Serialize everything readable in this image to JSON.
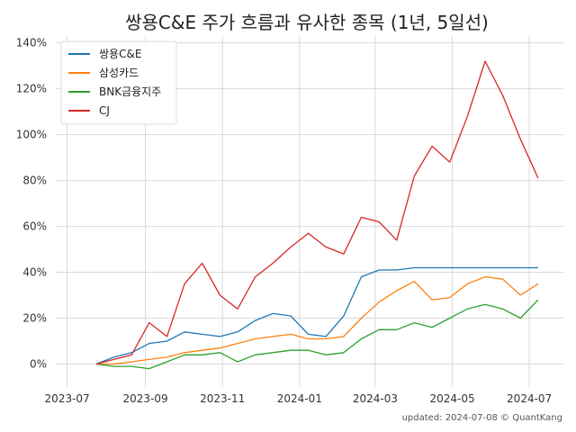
{
  "chart_data": {
    "type": "line",
    "title": "쌍용C&E 주가 흐름과 유사한 종목 (1년, 5일선)",
    "xlabel": "",
    "ylabel": "",
    "x_tick_labels": [
      "2023-07",
      "2023-09",
      "2023-11",
      "2024-01",
      "2024-03",
      "2024-05",
      "2024-07"
    ],
    "y_tick_labels": [
      "0%",
      "20%",
      "40%",
      "60%",
      "80%",
      "100%",
      "120%",
      "140%"
    ],
    "y_ticks": [
      0,
      20,
      40,
      60,
      80,
      100,
      120,
      140
    ],
    "xlim": [
      "2023-06-22",
      "2024-07-28"
    ],
    "ylim": [
      -10,
      143
    ],
    "grid": true,
    "legend_position": "top-left",
    "x": [
      "2023-07-24",
      "2023-08-07",
      "2023-08-21",
      "2023-09-04",
      "2023-09-18",
      "2023-10-02",
      "2023-10-16",
      "2023-10-30",
      "2023-11-13",
      "2023-11-27",
      "2023-12-11",
      "2023-12-25",
      "2024-01-08",
      "2024-01-22",
      "2024-02-05",
      "2024-02-19",
      "2024-03-04",
      "2024-03-18",
      "2024-04-01",
      "2024-04-15",
      "2024-04-29",
      "2024-05-13",
      "2024-05-27",
      "2024-06-10",
      "2024-06-24",
      "2024-07-08"
    ],
    "series": [
      {
        "name": "쌍용C&E",
        "color": "#1f77b4",
        "values": [
          0,
          3,
          5,
          9,
          10,
          14,
          13,
          12,
          14,
          19,
          22,
          21,
          13,
          12,
          21,
          38,
          41,
          41,
          42,
          42,
          42,
          42,
          42,
          42,
          42,
          42
        ]
      },
      {
        "name": "삼성카드",
        "color": "#ff7f0e",
        "values": [
          0,
          0,
          1,
          2,
          3,
          5,
          6,
          7,
          9,
          11,
          12,
          13,
          11,
          11,
          12,
          20,
          27,
          32,
          36,
          28,
          29,
          35,
          38,
          37,
          30,
          35
        ]
      },
      {
        "name": "BNK금융지주",
        "color": "#2ca02c",
        "values": [
          0,
          -1,
          -1,
          -2,
          1,
          4,
          4,
          5,
          1,
          4,
          5,
          6,
          6,
          4,
          5,
          11,
          15,
          15,
          18,
          16,
          20,
          24,
          26,
          24,
          20,
          28
        ]
      },
      {
        "name": "CJ",
        "color": "#d62728",
        "values": [
          0,
          2,
          4,
          18,
          12,
          35,
          44,
          30,
          24,
          38,
          44,
          51,
          57,
          51,
          48,
          64,
          62,
          54,
          82,
          95,
          88,
          108,
          132,
          117,
          98,
          81
        ]
      }
    ]
  },
  "footer": {
    "updated": "updated: 2024-07-08 © QuantKang"
  }
}
